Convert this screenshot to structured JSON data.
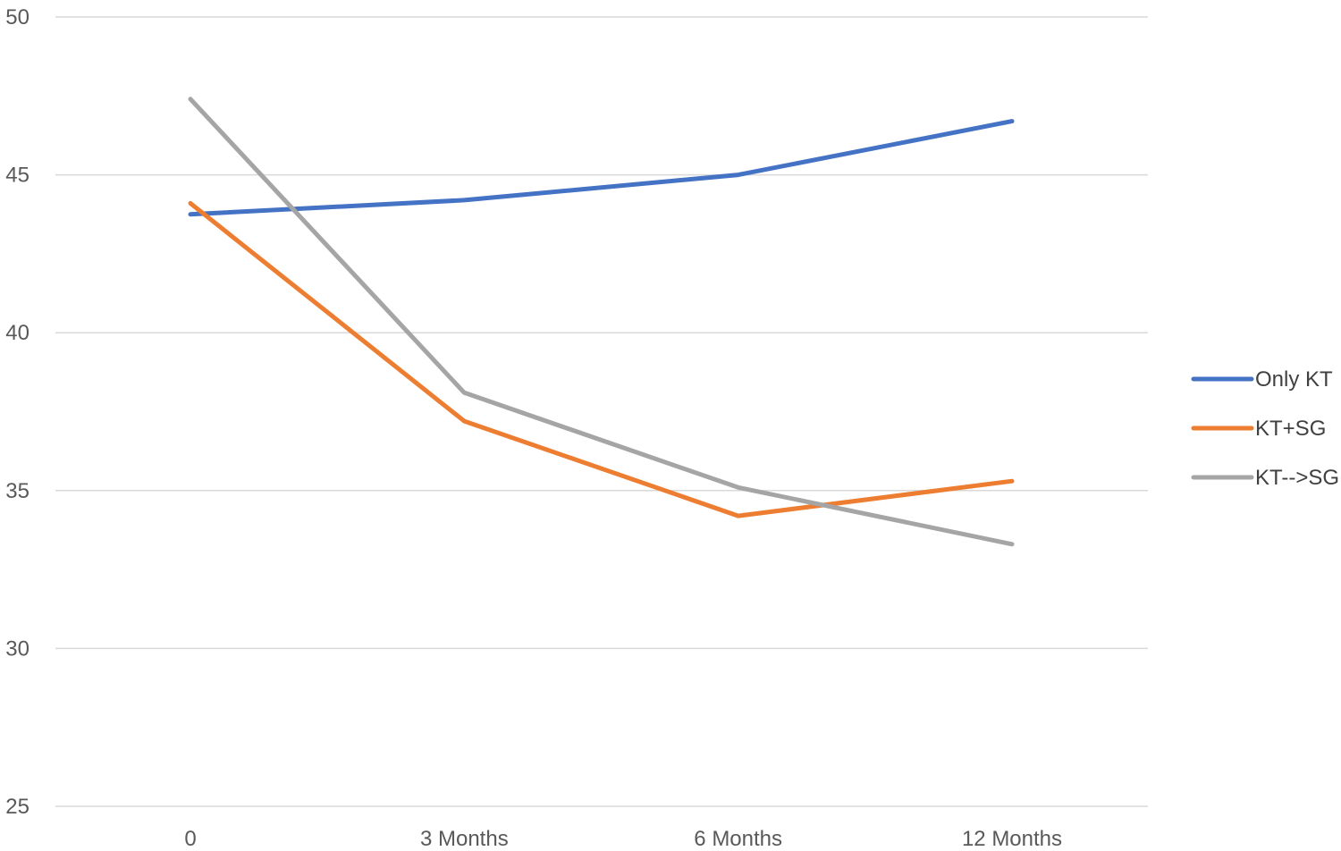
{
  "chart_data": {
    "type": "line",
    "title": "",
    "xlabel": "",
    "ylabel": "",
    "categories": [
      "0",
      "3 Months",
      "6 Months",
      "12 Months"
    ],
    "ylim": [
      25,
      50
    ],
    "yticks": [
      25,
      30,
      35,
      40,
      45,
      50
    ],
    "grid": true,
    "legend_position": "right",
    "series": [
      {
        "name": "Only KT",
        "color": "#4472c4",
        "values": [
          43.75,
          44.2,
          45.0,
          46.7
        ]
      },
      {
        "name": "KT+SG",
        "color": "#ed7d31",
        "values": [
          44.1,
          37.2,
          34.2,
          35.3
        ]
      },
      {
        "name": "KT-->SG",
        "color": "#a5a5a5",
        "values": [
          47.4,
          38.1,
          35.1,
          33.3
        ]
      }
    ]
  }
}
